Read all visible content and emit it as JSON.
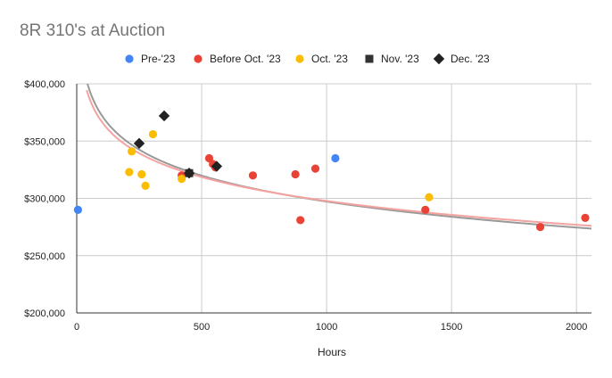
{
  "chart_data": {
    "type": "scatter",
    "title": "8R 310's at Auction",
    "xlabel": "Hours",
    "ylabel": "",
    "xlim": [
      0,
      2060
    ],
    "ylim": [
      200000,
      400000
    ],
    "x_ticks": [
      0,
      500,
      1000,
      1500,
      2000
    ],
    "x_tick_labels": [
      "0",
      "500",
      "1000",
      "1500",
      "2000"
    ],
    "y_ticks": [
      200000,
      250000,
      300000,
      350000,
      400000
    ],
    "y_tick_labels": [
      "$200,000",
      "$250,000",
      "$300,000",
      "$350,000",
      "$400,000"
    ],
    "grid": true,
    "legend_position": "top",
    "series": [
      {
        "name": "Pre-'23",
        "marker": "circle",
        "color": "#4285F4",
        "points": [
          [
            5,
            290000
          ],
          [
            1035,
            335000
          ]
        ]
      },
      {
        "name": "Before Oct. '23",
        "marker": "circle",
        "color": "#EA4335",
        "points": [
          [
            420,
            320000
          ],
          [
            530,
            335000
          ],
          [
            545,
            330000
          ],
          [
            555,
            327000
          ],
          [
            705,
            320000
          ],
          [
            875,
            321000
          ],
          [
            895,
            281000
          ],
          [
            955,
            326000
          ],
          [
            1395,
            290000
          ],
          [
            1855,
            275000
          ],
          [
            2035,
            283000
          ]
        ]
      },
      {
        "name": "Oct. '23",
        "marker": "circle",
        "color": "#FBBC04",
        "points": [
          [
            210,
            323000
          ],
          [
            220,
            341000
          ],
          [
            260,
            321000
          ],
          [
            275,
            311000
          ],
          [
            305,
            356000
          ],
          [
            420,
            317000
          ],
          [
            1410,
            301000
          ]
        ]
      },
      {
        "name": "Nov. '23",
        "marker": "square",
        "color": "#333333",
        "points": [
          [
            450,
            322000
          ]
        ]
      },
      {
        "name": "Dec. '23",
        "marker": "diamond",
        "color": "#222222",
        "points": [
          [
            250,
            348000
          ],
          [
            350,
            372000
          ],
          [
            450,
            322000
          ],
          [
            560,
            328000
          ]
        ]
      }
    ],
    "trendlines": [
      {
        "type": "logarithmic",
        "color": "#999999",
        "a": 523100,
        "b": -32700
      },
      {
        "type": "logarithmic",
        "color": "#F4A3A0",
        "a": 505350,
        "b": -30050
      }
    ]
  }
}
